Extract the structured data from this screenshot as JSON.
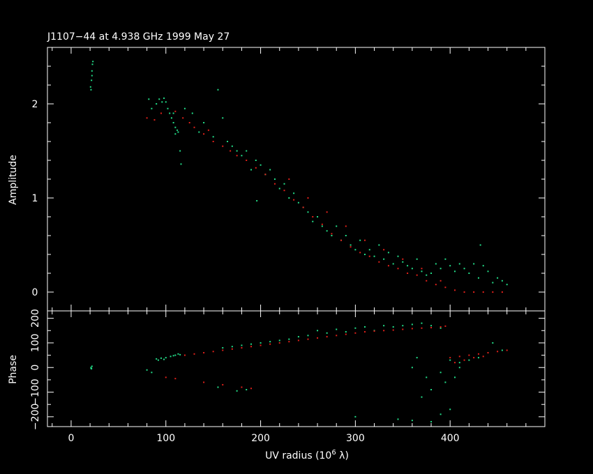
{
  "colors": {
    "background": "#000000",
    "axes": "#ffffff",
    "model": "#e0201a",
    "data": "#22dd88"
  },
  "chart_data": [
    {
      "type": "scatter",
      "title": "J1107−44 at 4.938 GHz 1999 May 27",
      "ylabel": "Amplitude",
      "xlim": [
        -25,
        500
      ],
      "ylim": [
        -0.2,
        2.6
      ],
      "xticks": [
        0,
        100,
        200,
        300,
        400
      ],
      "yticks": [
        0,
        1,
        2
      ],
      "ytick_labels": [
        "0",
        "1",
        "2"
      ],
      "grid": false,
      "series": [
        {
          "color": "#22dd88",
          "points": [
            [
              21,
              2.15
            ],
            [
              21.5,
              2.25
            ],
            [
              22,
              2.35
            ],
            [
              22.5,
              2.42
            ],
            [
              23,
              2.45
            ],
            [
              20.5,
              2.18
            ],
            [
              22,
              2.3
            ],
            [
              82,
              2.05
            ],
            [
              85,
              1.95
            ],
            [
              90,
              2.0
            ],
            [
              93,
              2.05
            ],
            [
              96,
              2.02
            ],
            [
              98,
              2.06
            ],
            [
              100,
              2.02
            ],
            [
              102,
              1.95
            ],
            [
              104,
              1.9
            ],
            [
              106,
              1.85
            ],
            [
              108,
              1.8
            ],
            [
              110,
              1.75
            ],
            [
              112,
              1.72
            ],
            [
              113,
              1.7
            ],
            [
              110,
              1.68
            ],
            [
              108,
              1.9
            ],
            [
              115,
              1.5
            ],
            [
              116,
              1.36
            ],
            [
              120,
              1.95
            ],
            [
              128,
              1.9
            ],
            [
              135,
              1.7
            ],
            [
              140,
              1.8
            ],
            [
              150,
              1.65
            ],
            [
              155,
              2.15
            ],
            [
              160,
              1.85
            ],
            [
              165,
              1.6
            ],
            [
              170,
              1.55
            ],
            [
              175,
              1.5
            ],
            [
              180,
              1.45
            ],
            [
              185,
              1.5
            ],
            [
              190,
              1.3
            ],
            [
              195,
              1.4
            ],
            [
              200,
              1.35
            ],
            [
              205,
              1.25
            ],
            [
              210,
              1.3
            ],
            [
              215,
              1.2
            ],
            [
              220,
              1.1
            ],
            [
              225,
              1.15
            ],
            [
              230,
              1.0
            ],
            [
              235,
              1.05
            ],
            [
              240,
              0.95
            ],
            [
              245,
              0.9
            ],
            [
              250,
              0.85
            ],
            [
              255,
              0.75
            ],
            [
              260,
              0.8
            ],
            [
              265,
              0.7
            ],
            [
              270,
              0.65
            ],
            [
              275,
              0.6
            ],
            [
              280,
              0.7
            ],
            [
              285,
              0.55
            ],
            [
              290,
              0.6
            ],
            [
              295,
              0.5
            ],
            [
              300,
              0.45
            ],
            [
              305,
              0.55
            ],
            [
              310,
              0.4
            ],
            [
              315,
              0.45
            ],
            [
              320,
              0.38
            ],
            [
              325,
              0.5
            ],
            [
              330,
              0.35
            ],
            [
              335,
              0.42
            ],
            [
              340,
              0.3
            ],
            [
              345,
              0.38
            ],
            [
              350,
              0.32
            ],
            [
              355,
              0.28
            ],
            [
              360,
              0.25
            ],
            [
              365,
              0.35
            ],
            [
              370,
              0.22
            ],
            [
              375,
              0.18
            ],
            [
              380,
              0.2
            ],
            [
              385,
              0.3
            ],
            [
              390,
              0.25
            ],
            [
              395,
              0.35
            ],
            [
              400,
              0.28
            ],
            [
              405,
              0.22
            ],
            [
              410,
              0.3
            ],
            [
              415,
              0.25
            ],
            [
              420,
              0.2
            ],
            [
              425,
              0.3
            ],
            [
              430,
              0.15
            ],
            [
              435,
              0.28
            ],
            [
              440,
              0.22
            ],
            [
              445,
              0.1
            ],
            [
              450,
              0.15
            ],
            [
              455,
              0.12
            ],
            [
              460,
              0.08
            ],
            [
              432,
              0.5
            ],
            [
              196,
              0.97
            ]
          ]
        },
        {
          "color": "#e0201a",
          "points": [
            [
              80,
              1.85
            ],
            [
              88,
              1.83
            ],
            [
              95,
              1.9
            ],
            [
              110,
              1.92
            ],
            [
              118,
              1.85
            ],
            [
              125,
              1.8
            ],
            [
              130,
              1.75
            ],
            [
              140,
              1.68
            ],
            [
              145,
              1.72
            ],
            [
              150,
              1.6
            ],
            [
              160,
              1.55
            ],
            [
              168,
              1.5
            ],
            [
              175,
              1.45
            ],
            [
              185,
              1.4
            ],
            [
              195,
              1.32
            ],
            [
              205,
              1.25
            ],
            [
              215,
              1.15
            ],
            [
              225,
              1.08
            ],
            [
              235,
              0.98
            ],
            [
              245,
              0.9
            ],
            [
              255,
              0.8
            ],
            [
              265,
              0.72
            ],
            [
              275,
              0.62
            ],
            [
              285,
              0.55
            ],
            [
              295,
              0.48
            ],
            [
              305,
              0.42
            ],
            [
              315,
              0.38
            ],
            [
              325,
              0.32
            ],
            [
              335,
              0.28
            ],
            [
              345,
              0.25
            ],
            [
              355,
              0.2
            ],
            [
              365,
              0.18
            ],
            [
              375,
              0.12
            ],
            [
              385,
              0.08
            ],
            [
              395,
              0.05
            ],
            [
              405,
              0.02
            ],
            [
              415,
              0.0
            ],
            [
              425,
              0.0
            ],
            [
              435,
              0.0
            ],
            [
              445,
              0.0
            ],
            [
              455,
              0.0
            ],
            [
              270,
              0.85
            ],
            [
              290,
              0.7
            ],
            [
              310,
              0.55
            ],
            [
              330,
              0.45
            ],
            [
              350,
              0.35
            ],
            [
              370,
              0.25
            ],
            [
              390,
              0.12
            ],
            [
              230,
              1.2
            ],
            [
              250,
              1.0
            ]
          ]
        }
      ]
    },
    {
      "type": "scatter",
      "xlabel": "UV radius  (10",
      "xlabel_exp": "6",
      "xlabel_unit": " λ)",
      "ylabel": "Phase",
      "xlim": [
        -25,
        500
      ],
      "ylim": [
        -240,
        230
      ],
      "xticks": [
        0,
        100,
        200,
        300,
        400
      ],
      "xtick_labels": [
        "0",
        "100",
        "200",
        "300",
        "400"
      ],
      "yticks": [
        -200,
        -100,
        0,
        100,
        200
      ],
      "ytick_labels": [
        "−200",
        "−100",
        "0",
        "100",
        "200"
      ],
      "grid": false,
      "series": [
        {
          "color": "#22dd88",
          "points": [
            [
              21,
              0
            ],
            [
              21.5,
              -5
            ],
            [
              22,
              5
            ],
            [
              21,
              -3
            ],
            [
              90,
              35
            ],
            [
              95,
              38
            ],
            [
              100,
              40
            ],
            [
              105,
              45
            ],
            [
              110,
              50
            ],
            [
              113,
              55
            ],
            [
              92,
              30
            ],
            [
              98,
              33
            ],
            [
              108,
              48
            ],
            [
              115,
              52
            ],
            [
              80,
              -10
            ],
            [
              85,
              -20
            ],
            [
              160,
              80
            ],
            [
              170,
              85
            ],
            [
              180,
              90
            ],
            [
              190,
              95
            ],
            [
              200,
              100
            ],
            [
              210,
              105
            ],
            [
              220,
              110
            ],
            [
              230,
              115
            ],
            [
              240,
              125
            ],
            [
              250,
              130
            ],
            [
              260,
              150
            ],
            [
              270,
              140
            ],
            [
              280,
              155
            ],
            [
              290,
              145
            ],
            [
              300,
              160
            ],
            [
              310,
              165
            ],
            [
              320,
              150
            ],
            [
              330,
              170
            ],
            [
              340,
              165
            ],
            [
              350,
              170
            ],
            [
              360,
              175
            ],
            [
              370,
              180
            ],
            [
              380,
              170
            ],
            [
              390,
              160
            ],
            [
              155,
              -80
            ],
            [
              175,
              -95
            ],
            [
              185,
              -90
            ],
            [
              300,
              -200
            ],
            [
              345,
              -210
            ],
            [
              360,
              -215
            ],
            [
              380,
              -220
            ],
            [
              390,
              -190
            ],
            [
              400,
              -170
            ],
            [
              370,
              -120
            ],
            [
              380,
              -90
            ],
            [
              395,
              -60
            ],
            [
              405,
              -40
            ],
            [
              410,
              20
            ],
            [
              420,
              30
            ],
            [
              430,
              40
            ],
            [
              440,
              60
            ],
            [
              445,
              100
            ],
            [
              455,
              70
            ],
            [
              400,
              30
            ],
            [
              410,
              0
            ],
            [
              390,
              -20
            ],
            [
              375,
              -40
            ],
            [
              360,
              0
            ],
            [
              365,
              40
            ]
          ]
        },
        {
          "color": "#e0201a",
          "points": [
            [
              120,
              50
            ],
            [
              130,
              55
            ],
            [
              140,
              60
            ],
            [
              150,
              65
            ],
            [
              160,
              70
            ],
            [
              170,
              75
            ],
            [
              180,
              80
            ],
            [
              190,
              85
            ],
            [
              200,
              90
            ],
            [
              210,
              95
            ],
            [
              220,
              100
            ],
            [
              230,
              105
            ],
            [
              240,
              110
            ],
            [
              250,
              115
            ],
            [
              260,
              120
            ],
            [
              270,
              125
            ],
            [
              280,
              130
            ],
            [
              290,
              135
            ],
            [
              300,
              140
            ],
            [
              310,
              145
            ],
            [
              320,
              148
            ],
            [
              330,
              150
            ],
            [
              340,
              152
            ],
            [
              350,
              155
            ],
            [
              360,
              158
            ],
            [
              370,
              160
            ],
            [
              380,
              162
            ],
            [
              390,
              165
            ],
            [
              395,
              168
            ],
            [
              100,
              -40
            ],
            [
              110,
              -45
            ],
            [
              140,
              -60
            ],
            [
              160,
              -70
            ],
            [
              180,
              -80
            ],
            [
              190,
              -85
            ],
            [
              400,
              40
            ],
            [
              410,
              45
            ],
            [
              420,
              50
            ],
            [
              430,
              55
            ],
            [
              440,
              60
            ],
            [
              450,
              65
            ],
            [
              460,
              70
            ],
            [
              405,
              20
            ],
            [
              415,
              30
            ],
            [
              425,
              40
            ],
            [
              435,
              45
            ]
          ]
        }
      ]
    }
  ]
}
